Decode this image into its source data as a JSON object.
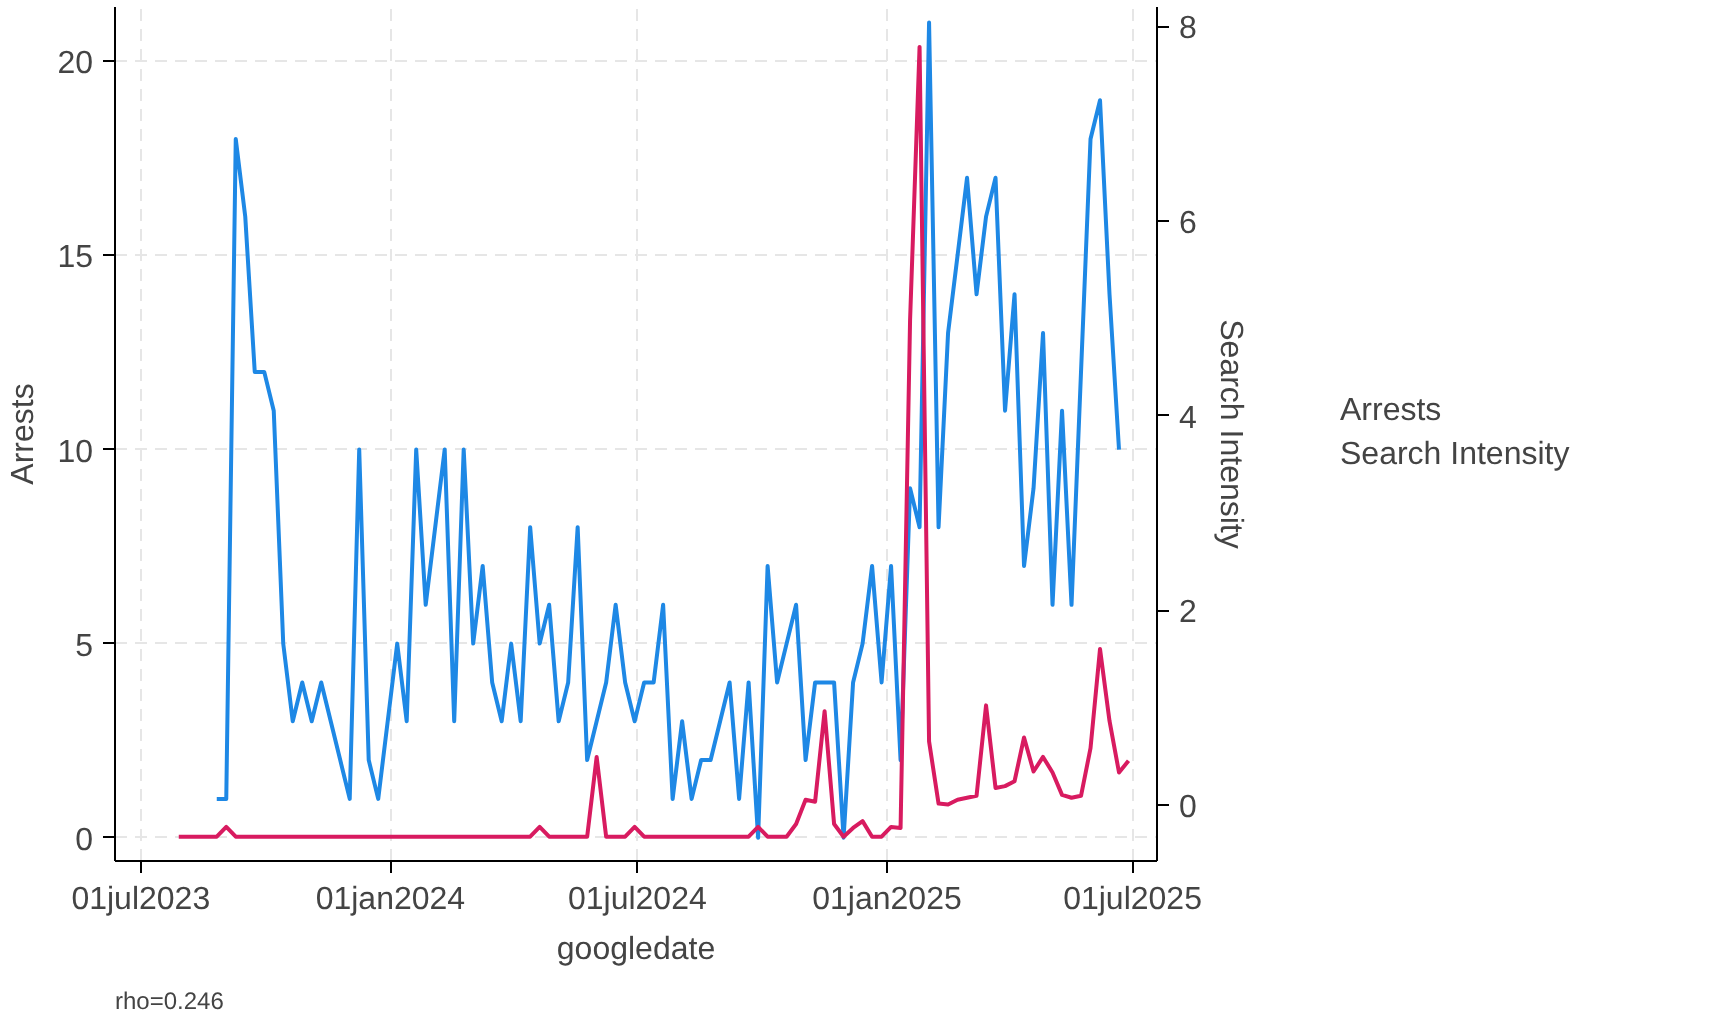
{
  "chart_data": {
    "type": "line",
    "xlabel": "googledate",
    "ylabel": "Arrests",
    "y2label": "Search Intensity",
    "x": [
      "2023-07-29",
      "2023-08-05",
      "2023-08-12",
      "2023-08-19",
      "2023-08-26",
      "2023-09-02",
      "2023-09-09",
      "2023-09-16",
      "2023-09-23",
      "2023-09-30",
      "2023-10-07",
      "2023-10-14",
      "2023-10-21",
      "2023-10-28",
      "2023-11-04",
      "2023-11-11",
      "2023-11-18",
      "2023-11-25",
      "2023-12-02",
      "2023-12-09",
      "2023-12-16",
      "2023-12-23",
      "2023-12-30",
      "2024-01-06",
      "2024-01-13",
      "2024-01-20",
      "2024-01-27",
      "2024-02-03",
      "2024-02-10",
      "2024-02-17",
      "2024-02-24",
      "2024-03-02",
      "2024-03-09",
      "2024-03-16",
      "2024-03-23",
      "2024-03-30",
      "2024-04-06",
      "2024-04-13",
      "2024-04-20",
      "2024-04-27",
      "2024-05-04",
      "2024-05-11",
      "2024-05-18",
      "2024-05-25",
      "2024-06-01",
      "2024-06-08",
      "2024-06-15",
      "2024-06-22",
      "2024-06-29",
      "2024-07-06",
      "2024-07-13",
      "2024-07-20",
      "2024-07-27",
      "2024-08-03",
      "2024-08-10",
      "2024-08-17",
      "2024-08-24",
      "2024-08-31",
      "2024-09-07",
      "2024-09-14",
      "2024-09-21",
      "2024-09-28",
      "2024-10-05",
      "2024-10-12",
      "2024-10-19",
      "2024-10-26",
      "2024-11-02",
      "2024-11-09",
      "2024-11-16",
      "2024-11-23",
      "2024-11-30",
      "2024-12-07",
      "2024-12-14",
      "2024-12-21",
      "2024-12-28",
      "2025-01-04",
      "2025-01-11",
      "2025-01-18",
      "2025-01-25",
      "2025-02-01",
      "2025-02-08",
      "2025-02-15",
      "2025-02-22",
      "2025-03-01",
      "2025-03-08",
      "2025-03-15",
      "2025-03-22",
      "2025-03-29",
      "2025-04-05",
      "2025-04-12",
      "2025-04-19",
      "2025-04-26",
      "2025-05-03",
      "2025-05-10",
      "2025-05-17",
      "2025-05-24",
      "2025-05-31",
      "2025-06-07",
      "2025-06-14",
      "2025-06-21",
      "2025-06-28"
    ],
    "series": [
      {
        "name": "Arrests",
        "color": "#1e88e5",
        "values": [
          null,
          null,
          null,
          null,
          1,
          1,
          18,
          16,
          12,
          12,
          11,
          5,
          3,
          4,
          3,
          4,
          3,
          2,
          1,
          10,
          2,
          1,
          3,
          5,
          3,
          10,
          6,
          8,
          10,
          3,
          10,
          5,
          7,
          4,
          3,
          5,
          3,
          8,
          5,
          6,
          3,
          4,
          8,
          2,
          3,
          4,
          6,
          4,
          3,
          4,
          4,
          6,
          1,
          3,
          1,
          2,
          2,
          3,
          4,
          1,
          4,
          0,
          7,
          4,
          5,
          6,
          2,
          4,
          4,
          4,
          0,
          4,
          5,
          7,
          4,
          7,
          2,
          9,
          8,
          21,
          8,
          13,
          15,
          17,
          14,
          16,
          17,
          11,
          14,
          7,
          9,
          13,
          6,
          11,
          6,
          12,
          18,
          19,
          14,
          10,
          null
        ]
      },
      {
        "name": "Search Intensity",
        "color": "#d81b60",
        "axis": "y2",
        "values": [
          -0.33,
          -0.33,
          -0.33,
          -0.33,
          -0.33,
          -0.23,
          -0.33,
          -0.33,
          -0.33,
          -0.33,
          -0.33,
          -0.33,
          -0.33,
          -0.33,
          -0.33,
          -0.33,
          -0.33,
          -0.33,
          -0.33,
          -0.33,
          -0.33,
          -0.33,
          -0.33,
          -0.33,
          -0.33,
          -0.33,
          -0.33,
          -0.33,
          -0.33,
          -0.33,
          -0.33,
          -0.33,
          -0.33,
          -0.33,
          -0.33,
          -0.33,
          -0.33,
          -0.33,
          -0.23,
          -0.33,
          -0.33,
          -0.33,
          -0.33,
          -0.33,
          0.49,
          -0.33,
          -0.33,
          -0.33,
          -0.23,
          -0.33,
          -0.33,
          -0.33,
          -0.33,
          -0.33,
          -0.33,
          -0.33,
          -0.33,
          -0.33,
          -0.33,
          -0.33,
          -0.33,
          -0.23,
          -0.33,
          -0.33,
          -0.33,
          -0.2,
          0.05,
          0.03,
          0.96,
          -0.2,
          -0.33,
          -0.24,
          -0.17,
          -0.33,
          -0.33,
          -0.23,
          -0.24,
          4.98,
          7.79,
          0.65,
          0.01,
          0,
          0.05,
          0.07,
          0.09,
          1.02,
          0.17,
          0.19,
          0.24,
          0.69,
          0.34,
          0.49,
          0.33,
          0.1,
          0.07,
          0.09,
          0.58,
          1.6,
          0.86,
          0.33,
          0.45
        ]
      }
    ],
    "xlim": [
      "2023-06-12",
      "2025-07-19"
    ],
    "xticks": [
      {
        "value": "2023-07-01",
        "label": "01jul2023"
      },
      {
        "value": "2024-01-01",
        "label": "01jan2024"
      },
      {
        "value": "2024-07-01",
        "label": "01jul2024"
      },
      {
        "value": "2025-01-01",
        "label": "01jan2025"
      },
      {
        "value": "2025-07-01",
        "label": "01jul2025"
      }
    ],
    "ylim": [
      -0.6,
      21.4
    ],
    "yticks": [
      0,
      5,
      10,
      15,
      20
    ],
    "y2lim": [
      -0.58,
      8.2
    ],
    "y2ticks": [
      0,
      2,
      4,
      6,
      8
    ],
    "grid": true,
    "legend": "right",
    "line_style": "solid",
    "marker": "none",
    "annotations": [
      "rho=0.246"
    ]
  }
}
